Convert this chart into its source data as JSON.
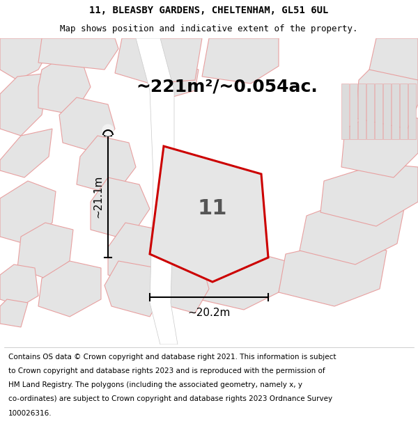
{
  "title_line1": "11, BLEASBY GARDENS, CHELTENHAM, GL51 6UL",
  "title_line2": "Map shows position and indicative extent of the property.",
  "area_text": "~221m²/~0.054ac.",
  "label_11": "11",
  "dim_vertical": "~21.1m",
  "dim_horizontal": "~20.2m",
  "footer_lines": [
    "Contains OS data © Crown copyright and database right 2021. This information is subject",
    "to Crown copyright and database rights 2023 and is reproduced with the permission of",
    "HM Land Registry. The polygons (including the associated geometry, namely x, y",
    "co-ordinates) are subject to Crown copyright and database rights 2023 Ordnance Survey",
    "100026316."
  ],
  "bg_color": "#f2f2f2",
  "neighbor_fill": "#e4e4e4",
  "neighbor_edge": "#e8a0a0",
  "road_color": "#ffffff",
  "plot_fill": "#e6e6e6",
  "plot_edge": "#cc0000",
  "plot_edge_lw": 2.2,
  "title_fontsize": 10,
  "subtitle_fontsize": 9,
  "area_fontsize": 18,
  "label_fontsize": 22,
  "dim_fontsize": 11,
  "footer_fontsize": 7.5,
  "neighbor_lw": 0.8
}
